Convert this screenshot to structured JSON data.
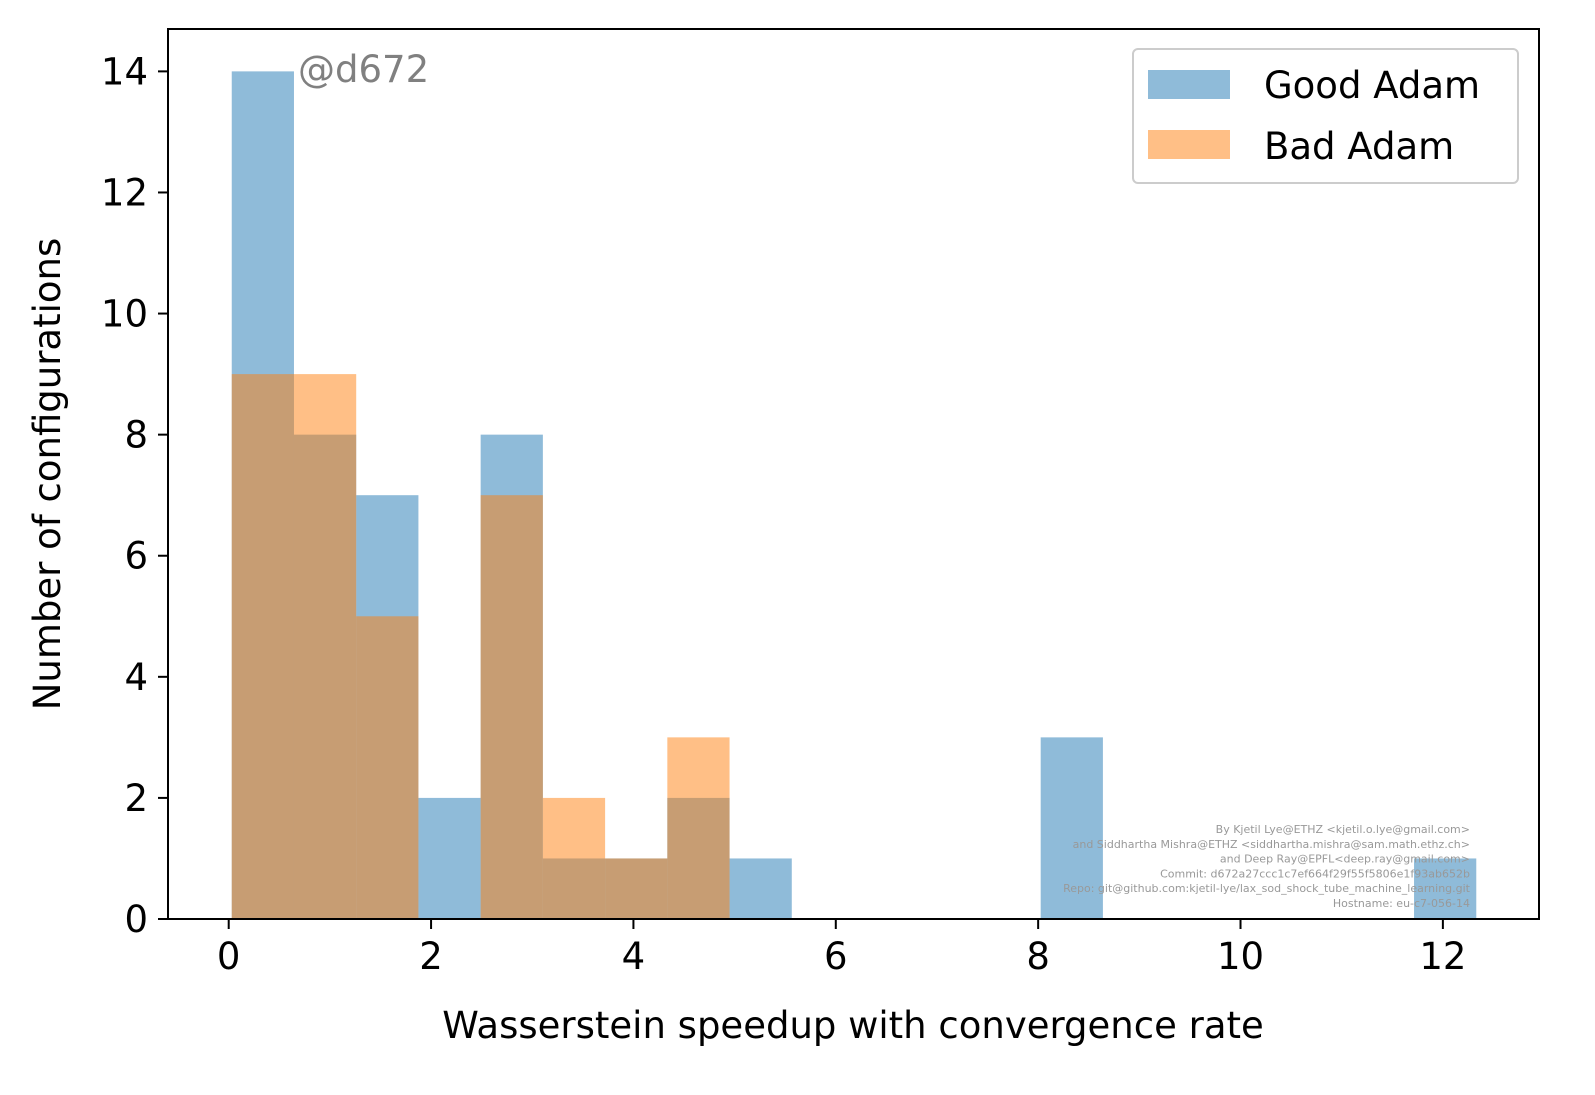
{
  "chart_data": {
    "type": "bar",
    "subtype": "overlapping-histogram",
    "title": "",
    "xlabel": "Wasserstein speedup with convergence rate",
    "ylabel": "Number of configurations",
    "xlim": [
      -0.6,
      12.95
    ],
    "ylim": [
      0,
      14.7
    ],
    "xticks": [
      0,
      2,
      4,
      6,
      8,
      10,
      12
    ],
    "yticks": [
      0,
      2,
      4,
      6,
      8,
      10,
      12,
      14
    ],
    "grid": false,
    "legend_position": "top-right",
    "bin_edges": [
      0.03,
      0.645,
      1.26,
      1.875,
      2.49,
      3.105,
      3.72,
      4.335,
      4.95,
      5.565,
      6.18,
      6.795,
      7.41,
      8.025,
      8.64,
      9.255,
      9.87,
      10.485,
      11.1,
      11.715,
      12.33
    ],
    "series": [
      {
        "name": "Good Adam",
        "color": "#1f77b4",
        "values": [
          14,
          8,
          7,
          2,
          8,
          1,
          1,
          2,
          1,
          0,
          0,
          0,
          0,
          3,
          0,
          0,
          0,
          0,
          0,
          1
        ]
      },
      {
        "name": "Bad Adam",
        "color": "#ff7f0e",
        "values": [
          9,
          9,
          5,
          0,
          7,
          2,
          1,
          3,
          0,
          0,
          0,
          0,
          0,
          0,
          0,
          0,
          0,
          0,
          0,
          0
        ]
      }
    ],
    "bar_opacity": 0.5,
    "annotation": "@d672",
    "credits": [
      "By Kjetil Lye@ETHZ <kjetil.o.lye@gmail.com>",
      "and Siddhartha Mishra@ETHZ <siddhartha.mishra@sam.math.ethz.ch>",
      "and Deep Ray@EPFL<deep.ray@gmail.com>",
      "Commit: d672a27ccc1c7ef664f29f55f5806e1f93ab652b",
      "Repo: git@github.com:kjetil-lye/lax_sod_shock_tube_machine_learning.git",
      "Hostname: eu-c7-056-14"
    ]
  }
}
